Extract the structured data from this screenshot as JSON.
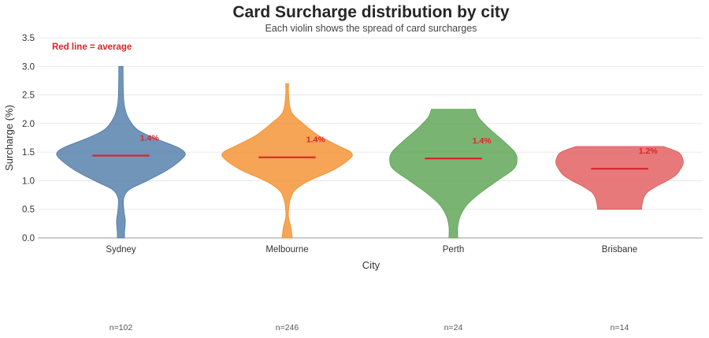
{
  "chart_data": {
    "type": "violin",
    "title": "Card Surcharge distribution by city",
    "subtitle": "Each violin shows the spread of card surcharges",
    "xlabel": "City",
    "ylabel": "Surcharge (%)",
    "ylim": [
      0,
      3.5
    ],
    "yticks": [
      "0.0",
      "0.5",
      "1.0",
      "1.5",
      "2.0",
      "2.5",
      "3.0",
      "3.5"
    ],
    "grid": true,
    "annotation": "Red line = average",
    "average_color": "#d62728",
    "categories": [
      "Sydney",
      "Melbourne",
      "Perth",
      "Brisbane"
    ],
    "series": [
      {
        "category": "Sydney",
        "color": "#4e79a7",
        "average": 1.44,
        "average_label": "1.4%",
        "count_label": "n=102",
        "min": 0.0,
        "max": 3.0,
        "profile": [
          [
            0.0,
            0.05
          ],
          [
            0.1,
            0.05
          ],
          [
            0.3,
            0.06
          ],
          [
            0.5,
            0.04
          ],
          [
            0.7,
            0.04
          ],
          [
            0.85,
            0.12
          ],
          [
            1.0,
            0.36
          ],
          [
            1.2,
            0.65
          ],
          [
            1.4,
            0.85
          ],
          [
            1.5,
            0.87
          ],
          [
            1.6,
            0.75
          ],
          [
            1.75,
            0.45
          ],
          [
            1.9,
            0.22
          ],
          [
            2.1,
            0.1
          ],
          [
            2.3,
            0.05
          ],
          [
            2.5,
            0.035
          ],
          [
            2.8,
            0.03
          ],
          [
            3.0,
            0.03
          ]
        ]
      },
      {
        "category": "Melbourne",
        "color": "#f28e2b",
        "average": 1.41,
        "average_label": "1.4%",
        "count_label": "n=246",
        "min": 0.0,
        "max": 2.7,
        "profile": [
          [
            0.0,
            0.07
          ],
          [
            0.2,
            0.05
          ],
          [
            0.35,
            0.02
          ],
          [
            0.5,
            0.02
          ],
          [
            0.7,
            0.05
          ],
          [
            0.85,
            0.12
          ],
          [
            1.0,
            0.3
          ],
          [
            1.2,
            0.65
          ],
          [
            1.4,
            0.87
          ],
          [
            1.5,
            0.87
          ],
          [
            1.6,
            0.72
          ],
          [
            1.8,
            0.42
          ],
          [
            2.0,
            0.22
          ],
          [
            2.2,
            0.06
          ],
          [
            2.5,
            0.02
          ],
          [
            2.7,
            0.02
          ]
        ]
      },
      {
        "category": "Perth",
        "color": "#59a14f",
        "average": 1.39,
        "average_label": "1.4%",
        "count_label": "n=24",
        "min": 0.0,
        "max": 2.25,
        "profile": [
          [
            0.0,
            0.06
          ],
          [
            0.2,
            0.06
          ],
          [
            0.4,
            0.1
          ],
          [
            0.6,
            0.2
          ],
          [
            0.8,
            0.38
          ],
          [
            1.0,
            0.6
          ],
          [
            1.2,
            0.82
          ],
          [
            1.35,
            0.87
          ],
          [
            1.5,
            0.84
          ],
          [
            1.7,
            0.68
          ],
          [
            1.9,
            0.5
          ],
          [
            2.1,
            0.35
          ],
          [
            2.25,
            0.3
          ]
        ]
      },
      {
        "category": "Brisbane",
        "color": "#e15759",
        "average": 1.21,
        "average_label": "1.2%",
        "count_label": "n=14",
        "min": 0.5,
        "max": 1.6,
        "profile": [
          [
            0.5,
            0.3
          ],
          [
            0.6,
            0.31
          ],
          [
            0.7,
            0.33
          ],
          [
            0.8,
            0.38
          ],
          [
            0.9,
            0.5
          ],
          [
            1.0,
            0.65
          ],
          [
            1.1,
            0.77
          ],
          [
            1.2,
            0.83
          ],
          [
            1.3,
            0.87
          ],
          [
            1.4,
            0.86
          ],
          [
            1.5,
            0.8
          ],
          [
            1.6,
            0.6
          ]
        ]
      }
    ]
  }
}
